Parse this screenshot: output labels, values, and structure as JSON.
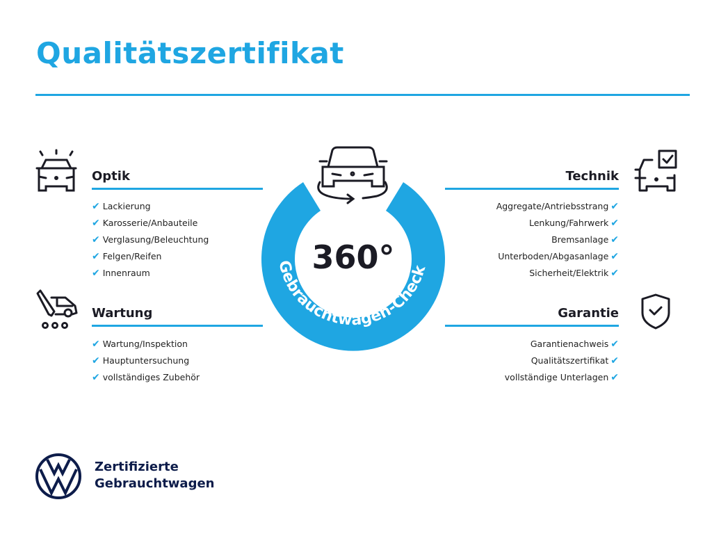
{
  "title": "Qualitätszertifikat",
  "center": {
    "big": "360°",
    "arc_text": "Gebrauchtwagen-Check",
    "ring_color": "#1fa6e2",
    "icon": "car-rotate-icon"
  },
  "sections": {
    "optik": {
      "heading": "Optik",
      "icon": "car-lights-icon",
      "items": [
        "Lackierung",
        "Karosserie/Anbauteile",
        "Verglasung/Beleuchtung",
        "Felgen/Reifen",
        "Innenraum"
      ]
    },
    "wartung": {
      "heading": "Wartung",
      "icon": "service-truck-icon",
      "items": [
        "Wartung/Inspektion",
        "Hauptuntersuchung",
        "vollständiges Zubehör"
      ]
    },
    "technik": {
      "heading": "Technik",
      "icon": "car-checkbox-icon",
      "items": [
        "Aggregate/Antriebsstrang",
        "Lenkung/Fahrwerk",
        "Bremsanlage",
        "Unterboden/Abgasanlage",
        "Sicherheit/Elektrik"
      ]
    },
    "garantie": {
      "heading": "Garantie",
      "icon": "shield-check-icon",
      "items": [
        "Garantienachweis",
        "Qualitätszertifikat",
        "vollständige Unterlagen"
      ]
    }
  },
  "check_symbol": "✔",
  "footer": {
    "line1": "Zertifizierte",
    "line2": "Gebrauchtwagen",
    "logo": "vw-logo"
  },
  "colors": {
    "accent": "#1fa6e2",
    "text": "#1b1b24",
    "brand_navy": "#0d1c4a"
  }
}
